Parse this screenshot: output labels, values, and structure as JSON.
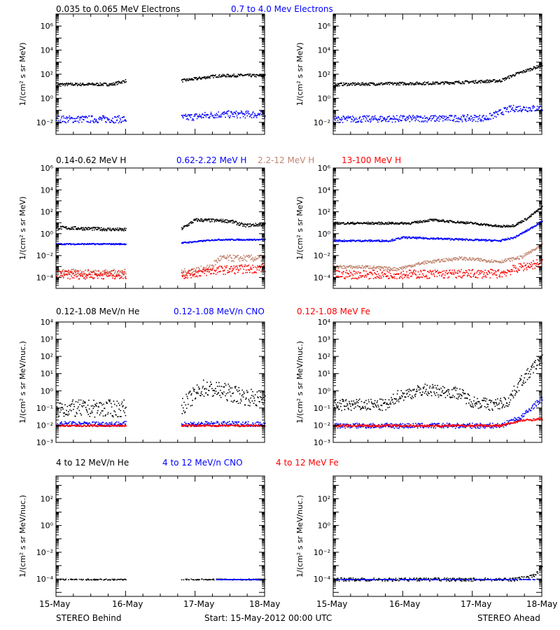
{
  "colors": {
    "black": "#000000",
    "blue": "#0000ff",
    "tan": "#c08570",
    "red": "#ff0000"
  },
  "footer": {
    "left": "STEREO Behind",
    "center": "Start: 15-May-2012 00:00 UTC",
    "right": "STEREO Ahead"
  },
  "chart_data": [
    {
      "type": "scatter",
      "id": "electrons",
      "log_y": true,
      "ylim_exp": [
        -3,
        7
      ],
      "ylabel": "1/(cm² s sr MeV)",
      "ticks": [
        {
          "exp": 6,
          "label": "10⁶"
        },
        {
          "exp": 4,
          "label": "10⁴"
        },
        {
          "exp": 2,
          "label": "10²"
        },
        {
          "exp": 0,
          "label": "10⁰"
        },
        {
          "exp": -2,
          "label": "10⁻²"
        }
      ],
      "xlim": [
        "15-May",
        "18-May"
      ],
      "x_ticks": [
        "15-May",
        "16-May",
        "17-May",
        "18-May"
      ],
      "legend": [
        {
          "name": "0.035 to 0.065 MeV Electrons",
          "color": "black"
        },
        {
          "name": "0.7 to 4.0 Mev Electrons",
          "color": "blue"
        }
      ],
      "panels": [
        {
          "name": "STEREO Behind",
          "series": [
            {
              "color": "black",
              "pts": [
                [
                  0,
                  1.2
                ],
                [
                  0.8,
                  1.2
                ],
                [
                  1.0,
                  1.5
                ],
                [
                  1.8,
                  1.5
                ],
                [
                  2.3,
                  1.9
                ],
                [
                  2.7,
                  1.95
                ],
                [
                  3,
                  1.9
                ]
              ],
              "spread": 0.12,
              "gaps": [
                [
                  1.0,
                  1.8
                ]
              ]
            },
            {
              "color": "blue",
              "pts": [
                [
                  0,
                  -1.7
                ],
                [
                  1.0,
                  -1.7
                ],
                [
                  1.8,
                  -1.6
                ],
                [
                  2.3,
                  -1.3
                ],
                [
                  3,
                  -1.3
                ]
              ],
              "spread": 0.3,
              "gaps": [
                [
                  1.0,
                  1.8
                ]
              ]
            }
          ]
        },
        {
          "name": "STEREO Ahead",
          "series": [
            {
              "color": "black",
              "pts": [
                [
                  0,
                  1.2
                ],
                [
                  1.5,
                  1.3
                ],
                [
                  2.4,
                  1.5
                ],
                [
                  2.6,
                  2.0
                ],
                [
                  3,
                  2.8
                ]
              ],
              "spread": 0.12
            },
            {
              "color": "blue",
              "pts": [
                [
                  0,
                  -1.7
                ],
                [
                  2.2,
                  -1.6
                ],
                [
                  2.5,
                  -0.9
                ],
                [
                  2.6,
                  -0.8
                ],
                [
                  3,
                  -0.8
                ]
              ],
              "spread": 0.28
            }
          ]
        }
      ]
    },
    {
      "type": "scatter",
      "id": "protons",
      "log_y": true,
      "ylim_exp": [
        -5,
        6
      ],
      "ylabel": "1/(cm² s sr MeV)",
      "ticks": [
        {
          "exp": 6,
          "label": "10⁶"
        },
        {
          "exp": 4,
          "label": "10⁴"
        },
        {
          "exp": 2,
          "label": "10²"
        },
        {
          "exp": 0,
          "label": "10⁰"
        },
        {
          "exp": -2,
          "label": "10⁻²"
        },
        {
          "exp": -4,
          "label": "10⁻⁴"
        }
      ],
      "xlim": [
        "15-May",
        "18-May"
      ],
      "x_ticks": [
        "15-May",
        "16-May",
        "17-May",
        "18-May"
      ],
      "legend": [
        {
          "name": "0.14-0.62 MeV H",
          "color": "black"
        },
        {
          "name": "0.62-2.22 MeV H",
          "color": "blue"
        },
        {
          "name": "2.2-12 MeV H",
          "color": "tan"
        },
        {
          "name": "13-100 MeV H",
          "color": "red"
        }
      ],
      "panels": [
        {
          "name": "STEREO Behind",
          "series": [
            {
              "color": "black",
              "pts": [
                [
                  0,
                  0.6
                ],
                [
                  1.0,
                  0.4
                ],
                [
                  1.8,
                  0.5
                ],
                [
                  2.0,
                  1.3
                ],
                [
                  2.5,
                  1.2
                ],
                [
                  2.7,
                  0.8
                ],
                [
                  3,
                  0.9
                ]
              ],
              "spread": 0.15,
              "gaps": [
                [
                  1.0,
                  1.8
                ]
              ]
            },
            {
              "color": "blue",
              "pts": [
                [
                  0,
                  -0.9
                ],
                [
                  1.0,
                  -0.9
                ],
                [
                  1.8,
                  -0.8
                ],
                [
                  2.3,
                  -0.5
                ],
                [
                  3,
                  -0.5
                ]
              ],
              "spread": 0.06,
              "gaps": [
                [
                  1.0,
                  1.8
                ]
              ]
            },
            {
              "color": "tan",
              "pts": [
                [
                  0,
                  -3.5
                ],
                [
                  1.0,
                  -3.5
                ],
                [
                  1.8,
                  -3.5
                ],
                [
                  2.2,
                  -3.1
                ],
                [
                  2.35,
                  -2.2
                ],
                [
                  3,
                  -2.2
                ]
              ],
              "spread": 0.3,
              "gaps": [
                [
                  1.0,
                  1.8
                ]
              ]
            },
            {
              "color": "red",
              "pts": [
                [
                  0,
                  -3.7
                ],
                [
                  1.0,
                  -3.7
                ],
                [
                  1.8,
                  -3.7
                ],
                [
                  2.3,
                  -3.3
                ],
                [
                  3,
                  -3.1
                ]
              ],
              "spread": 0.4,
              "gaps": [
                [
                  1.0,
                  1.8
                ]
              ]
            }
          ]
        },
        {
          "name": "STEREO Ahead",
          "series": [
            {
              "color": "black",
              "pts": [
                [
                  0,
                  1.0
                ],
                [
                  1.1,
                  1.0
                ],
                [
                  1.4,
                  1.3
                ],
                [
                  2.0,
                  1.0
                ],
                [
                  2.4,
                  0.7
                ],
                [
                  2.6,
                  0.8
                ],
                [
                  2.8,
                  1.5
                ],
                [
                  3,
                  2.5
                ]
              ],
              "spread": 0.1
            },
            {
              "color": "blue",
              "pts": [
                [
                  0,
                  -0.6
                ],
                [
                  0.8,
                  -0.6
                ],
                [
                  1.0,
                  -0.3
                ],
                [
                  2.4,
                  -0.6
                ],
                [
                  2.6,
                  -0.3
                ],
                [
                  2.8,
                  0.4
                ],
                [
                  3,
                  1.2
                ]
              ],
              "spread": 0.08
            },
            {
              "color": "tan",
              "pts": [
                [
                  0,
                  -3.0
                ],
                [
                  0.5,
                  -3.0
                ],
                [
                  0.9,
                  -3.2
                ],
                [
                  1.3,
                  -2.6
                ],
                [
                  1.8,
                  -2.2
                ],
                [
                  2.4,
                  -2.5
                ],
                [
                  2.7,
                  -2.1
                ],
                [
                  3,
                  -1.0
                ]
              ],
              "spread": 0.15
            },
            {
              "color": "red",
              "pts": [
                [
                  0,
                  -3.7
                ],
                [
                  2.4,
                  -3.6
                ],
                [
                  2.6,
                  -3.2
                ],
                [
                  2.7,
                  -3.0
                ],
                [
                  3,
                  -2.6
                ]
              ],
              "spread": 0.4
            }
          ]
        }
      ]
    },
    {
      "type": "scatter",
      "id": "heavy-ions",
      "log_y": true,
      "ylim_exp": [
        -3,
        4
      ],
      "ylabel": "1/(cm² s sr MeV/nuc.)",
      "ticks": [
        {
          "exp": 4,
          "label": "10⁴"
        },
        {
          "exp": 3,
          "label": "10³"
        },
        {
          "exp": 2,
          "label": "10²"
        },
        {
          "exp": 1,
          "label": "10¹"
        },
        {
          "exp": 0,
          "label": "10⁰"
        },
        {
          "exp": -1,
          "label": "10⁻¹"
        },
        {
          "exp": -2,
          "label": "10⁻²"
        },
        {
          "exp": -3,
          "label": "10⁻³"
        }
      ],
      "xlim": [
        "15-May",
        "18-May"
      ],
      "x_ticks": [
        "15-May",
        "16-May",
        "17-May",
        "18-May"
      ],
      "legend": [
        {
          "name": "0.12-1.08 MeV/n He",
          "color": "black"
        },
        {
          "name": "0.12-1.08 MeV/n CNO",
          "color": "blue"
        },
        {
          "name": "0.12-1.08 MeV Fe",
          "color": "red"
        }
      ],
      "panels": [
        {
          "name": "STEREO Behind",
          "series": [
            {
              "color": "black",
              "pts": [
                [
                  0,
                  -1.0
                ],
                [
                  1.0,
                  -1.0
                ],
                [
                  1.8,
                  -0.9
                ],
                [
                  2.1,
                  0.2
                ],
                [
                  2.4,
                  0.0
                ],
                [
                  2.7,
                  -0.3
                ],
                [
                  3,
                  -0.5
                ]
              ],
              "spread": 0.5,
              "gaps": [
                [
                  1.0,
                  1.8
                ]
              ]
            },
            {
              "color": "blue",
              "pts": [
                [
                  0,
                  -1.9
                ],
                [
                  1.0,
                  -1.9
                ],
                [
                  1.8,
                  -1.9
                ],
                [
                  3,
                  -1.9
                ]
              ],
              "spread": 0.15,
              "gaps": [
                [
                  1.0,
                  1.8
                ]
              ]
            },
            {
              "color": "red",
              "pts": [
                [
                  0,
                  -2.0
                ],
                [
                  1.0,
                  -2.0
                ],
                [
                  1.8,
                  -2.0
                ],
                [
                  3,
                  -2.0
                ]
              ],
              "spread": 0.05,
              "gaps": [
                [
                  1.0,
                  1.8
                ]
              ]
            }
          ]
        },
        {
          "name": "STEREO Ahead",
          "series": [
            {
              "color": "black",
              "pts": [
                [
                  0,
                  -0.8
                ],
                [
                  0.8,
                  -0.8
                ],
                [
                  0.9,
                  -0.3
                ],
                [
                  1.3,
                  0.1
                ],
                [
                  1.8,
                  -0.1
                ],
                [
                  2.0,
                  -0.6
                ],
                [
                  2.3,
                  -0.8
                ],
                [
                  2.5,
                  -0.6
                ],
                [
                  2.7,
                  0.6
                ],
                [
                  2.8,
                  1.0
                ],
                [
                  3,
                  2.0
                ]
              ],
              "spread": 0.35
            },
            {
              "color": "blue",
              "pts": [
                [
                  0,
                  -2.0
                ],
                [
                  2.4,
                  -2.0
                ],
                [
                  2.7,
                  -1.5
                ],
                [
                  3,
                  -0.4
                ]
              ],
              "spread": 0.15
            },
            {
              "color": "red",
              "pts": [
                [
                  0,
                  -2.0
                ],
                [
                  2.4,
                  -2.0
                ],
                [
                  2.7,
                  -1.7
                ],
                [
                  3,
                  -1.6
                ]
              ],
              "spread": 0.06
            }
          ]
        }
      ]
    },
    {
      "type": "scatter",
      "id": "high-energy-ions",
      "log_y": true,
      "ylim_exp": [
        -5.3,
        3.7
      ],
      "ylabel": "1/(cm² s sr MeV/nuc.)",
      "ticks": [
        {
          "exp": 2,
          "label": "10²"
        },
        {
          "exp": 0,
          "label": "10⁰"
        },
        {
          "exp": -2,
          "label": "10⁻²"
        },
        {
          "exp": -4,
          "label": "10⁻⁴"
        }
      ],
      "xlim": [
        "15-May",
        "18-May"
      ],
      "x_ticks": [
        "15-May",
        "16-May",
        "17-May",
        "18-May"
      ],
      "legend": [
        {
          "name": "4 to 12 MeV/n He",
          "color": "black"
        },
        {
          "name": "4 to 12 MeV/n CNO",
          "color": "blue"
        },
        {
          "name": "4 to 12 MeV Fe",
          "color": "red"
        }
      ],
      "panels": [
        {
          "name": "STEREO Behind",
          "series": [
            {
              "color": "black",
              "pts": [
                [
                  0,
                  -4.0
                ],
                [
                  3,
                  -4.0
                ]
              ],
              "spread": 0.04,
              "sparse": 0.35,
              "gaps": [
                [
                  1.0,
                  1.8
                ]
              ]
            },
            {
              "color": "blue",
              "pts": [
                [
                  2.3,
                  -4.0
                ],
                [
                  3,
                  -4.0
                ]
              ],
              "spread": 0.01
            }
          ]
        },
        {
          "name": "STEREO Ahead",
          "series": [
            {
              "color": "black",
              "pts": [
                [
                  0,
                  -4.0
                ],
                [
                  2.6,
                  -4.0
                ],
                [
                  2.9,
                  -3.7
                ],
                [
                  3,
                  -3.0
                ]
              ],
              "spread": 0.12,
              "sparse": 0.3
            },
            {
              "color": "blue",
              "pts": [
                [
                  0,
                  -4.0
                ],
                [
                  3,
                  -4.0
                ]
              ],
              "spread": 0.01,
              "sparse": 0.4
            }
          ]
        }
      ]
    }
  ]
}
